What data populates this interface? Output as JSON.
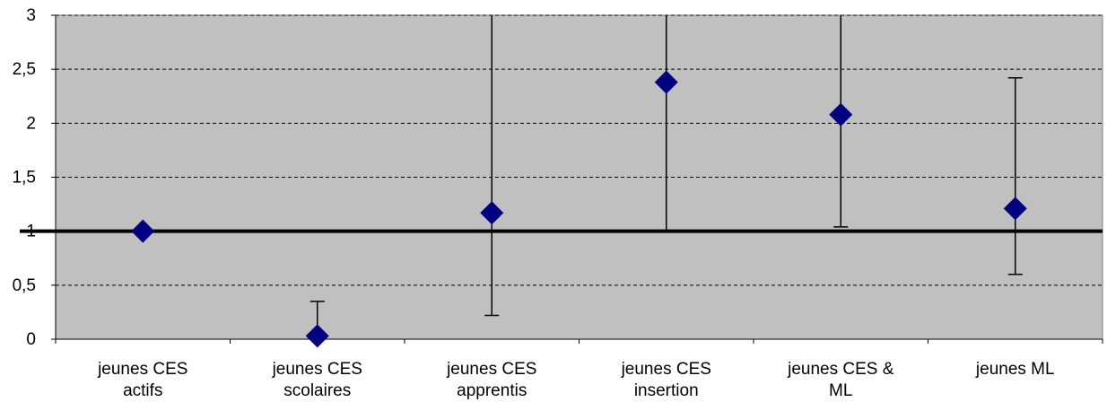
{
  "chart_data": {
    "type": "scatter",
    "title": "",
    "xlabel": "",
    "ylabel": "",
    "ylim": [
      0,
      3
    ],
    "yticks": [
      0,
      0.5,
      1,
      1.5,
      2,
      2.5,
      3
    ],
    "ytick_labels": [
      "0",
      "0,5",
      "1",
      "1,5",
      "2",
      "2,5",
      "3"
    ],
    "reference_line": 1,
    "grid": "horizontal dashed",
    "legend": "none",
    "categories": [
      [
        "jeunes CES",
        "actifs"
      ],
      [
        "jeunes CES",
        "scolaires"
      ],
      [
        "jeunes CES",
        "apprentis"
      ],
      [
        "jeunes CES",
        "insertion"
      ],
      [
        "jeunes CES &",
        "ML"
      ],
      [
        "jeunes ML"
      ]
    ],
    "points": [
      {
        "value": 1.0,
        "low": null,
        "high": null
      },
      {
        "value": 0.03,
        "low": 0.0,
        "high": 0.35
      },
      {
        "value": 1.17,
        "low": 0.22,
        "high": 3.0
      },
      {
        "value": 2.38,
        "low": 1.0,
        "high": 3.0
      },
      {
        "value": 2.08,
        "low": 1.04,
        "high": 3.0
      },
      {
        "value": 1.21,
        "low": 0.6,
        "high": 2.42
      }
    ],
    "colors": {
      "plot_background": "#c0c0c0",
      "marker": "#000080",
      "reference_line": "#000000",
      "error_bar": "#000000",
      "gridline": "#000000"
    }
  }
}
